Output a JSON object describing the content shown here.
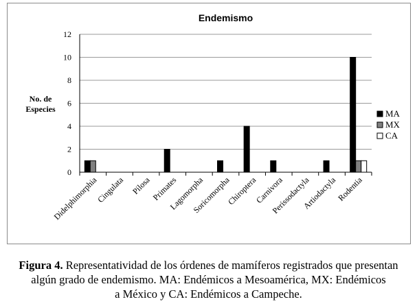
{
  "chart_data": {
    "type": "bar",
    "title": "Endemismo",
    "ylabel": "No. de Especies",
    "xlabel": "",
    "ylim": [
      0,
      12
    ],
    "yticks": [
      "0",
      "2",
      "4",
      "6",
      "8",
      "10",
      "12"
    ],
    "grid": true,
    "legend_position": "right",
    "categories": [
      "Didelphimorphia",
      "Cingulata",
      "Pilosa",
      "Primates",
      "Lagomorpha",
      "Soricomorpha",
      "Chiroptera",
      "Carnivora",
      "Perissodactyla",
      "Artiodactyla",
      "Rodentia"
    ],
    "series": [
      {
        "name": "MA",
        "color": "#000000",
        "values": [
          1,
          0,
          0,
          2,
          0,
          1,
          4,
          1,
          0,
          1,
          10
        ]
      },
      {
        "name": "MX",
        "color": "#808080",
        "values": [
          1,
          0,
          0,
          0,
          0,
          0,
          0,
          0,
          0,
          0,
          1
        ]
      },
      {
        "name": "CA",
        "color": "#ffffff",
        "values": [
          0,
          0,
          0,
          0,
          0,
          0,
          0,
          0,
          0,
          0,
          1
        ]
      }
    ]
  },
  "caption": {
    "label": "Figura 4.",
    "line1": " Representatividad de los órdenes de mamíferos registrados que presentan",
    "line2": "algún grado de endemismo. MA: Endémicos a Mesoamérica, MX: Endémicos",
    "line3": "a México y CA: Endémicos a Campeche."
  }
}
